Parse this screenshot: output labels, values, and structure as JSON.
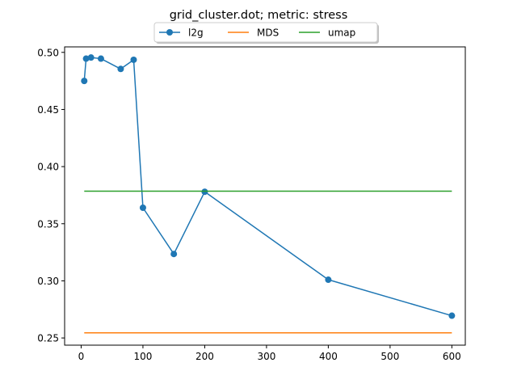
{
  "chart_data": {
    "type": "line",
    "title": "grid_cluster.dot; metric: stress",
    "xlabel": "",
    "ylabel": "",
    "xlim": [
      -26.75,
      621.75
    ],
    "ylim": [
      0.2437,
      0.5048
    ],
    "x_ticks": [
      0,
      100,
      200,
      300,
      400,
      500,
      600
    ],
    "y_ticks": [
      0.25,
      0.3,
      0.35,
      0.4,
      0.45,
      0.5
    ],
    "x_tick_labels": [
      "0",
      "100",
      "200",
      "300",
      "400",
      "500",
      "600"
    ],
    "y_tick_labels": [
      "0.25",
      "0.30",
      "0.35",
      "0.40",
      "0.45",
      "0.50"
    ],
    "grid": false,
    "legend": {
      "placement": "top-center, above plot",
      "entries": [
        "l2g",
        "MDS",
        "umap"
      ]
    },
    "series": [
      {
        "name": "l2g",
        "color": "#1f77b4",
        "marker": "circle",
        "x": [
          5,
          8,
          16,
          32,
          64,
          85,
          100,
          150,
          200,
          400,
          600
        ],
        "y": [
          0.475,
          0.4945,
          0.4955,
          0.4945,
          0.4855,
          0.4935,
          0.364,
          0.3235,
          0.378,
          0.301,
          0.2695
        ]
      },
      {
        "name": "MDS",
        "color": "#ff7f0e",
        "marker": "none",
        "x": [
          5,
          600
        ],
        "y": [
          0.2545,
          0.2545
        ]
      },
      {
        "name": "umap",
        "color": "#2ca02c",
        "marker": "none",
        "x": [
          5,
          600
        ],
        "y": [
          0.3785,
          0.3785
        ]
      }
    ]
  }
}
